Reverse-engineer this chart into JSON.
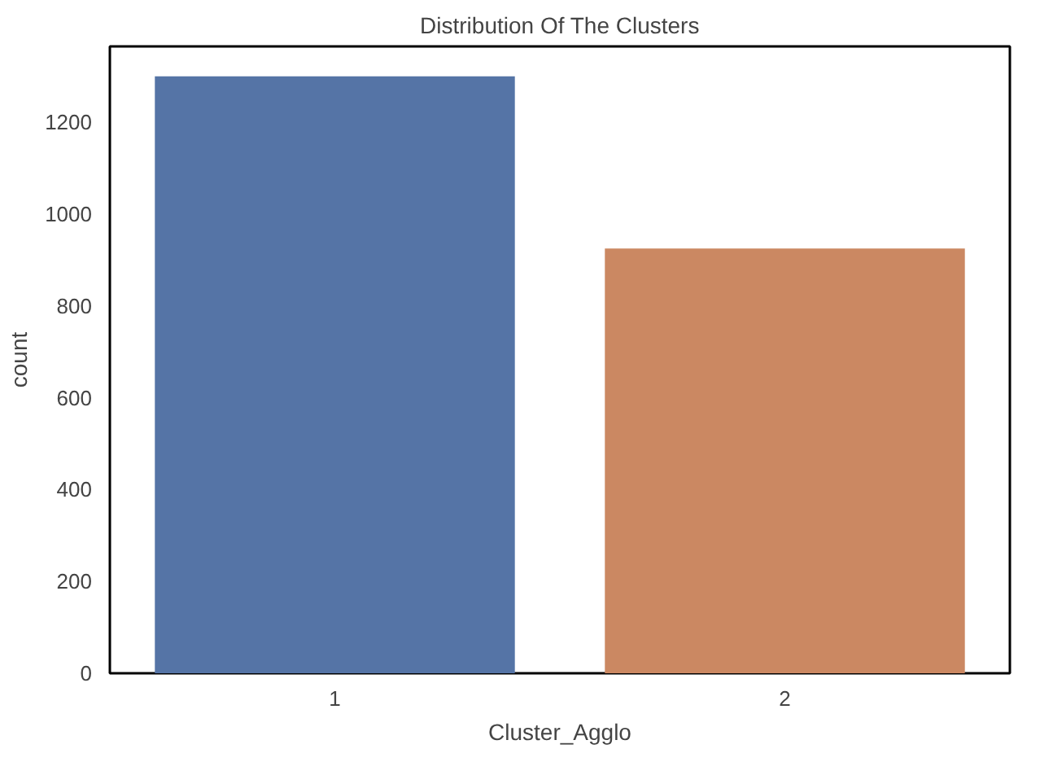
{
  "chart_data": {
    "type": "bar",
    "title": "Distribution Of The Clusters",
    "xlabel": "Cluster_Agglo",
    "ylabel": "count",
    "categories": [
      "1",
      "2"
    ],
    "values": [
      1300,
      925
    ],
    "colors": [
      "#5574a6",
      "#cb8862"
    ],
    "ylim": [
      0,
      1365
    ],
    "yticks": [
      0,
      200,
      400,
      600,
      800,
      1000,
      1200
    ],
    "grid": false
  }
}
